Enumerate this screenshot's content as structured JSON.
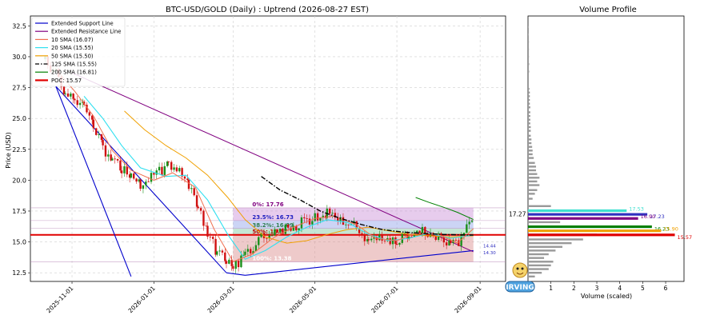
{
  "chart_data": [
    {
      "type": "candlestick",
      "title": "BTC-USD/GOLD (Daily) : Uptrend (2026-08-27 EST)",
      "xlabel": "",
      "ylabel": "Price (USD)",
      "ylim": [
        11.8,
        33.3
      ],
      "yticks": [
        "12.5",
        "15.0",
        "17.5",
        "20.0",
        "22.5",
        "25.0",
        "27.5",
        "30.0",
        "32.5"
      ],
      "xticks": [
        "2025-11-01",
        "2026-01-01",
        "2026-03-01",
        "2026-05-01",
        "2026-07-01",
        "2026-09-01"
      ],
      "grid": true,
      "legend_position": "top-left",
      "legend": [
        {
          "label": "Extended Support Line",
          "color": "#0000cc",
          "style": "solid"
        },
        {
          "label": "Extended Resistance Line",
          "color": "#800080",
          "style": "solid"
        },
        {
          "label": "10 SMA (16.07)",
          "color": "#f07050",
          "style": "solid"
        },
        {
          "label": "20 SMA (15.55)",
          "color": "#30e0f0",
          "style": "solid"
        },
        {
          "label": "50 SMA (15.50)",
          "color": "#f0a000",
          "style": "solid"
        },
        {
          "label": "125 SMA (15.55)",
          "color": "#000000",
          "style": "dashdot"
        },
        {
          "label": "200 SMA (16.81)",
          "color": "#008000",
          "style": "solid"
        },
        {
          "label": "POC: 15.57",
          "color": "#e00000",
          "style": "thick"
        }
      ],
      "close_series": [
        [
          "2025-10-12",
          29.8
        ],
        [
          "2025-10-20",
          28.6
        ],
        [
          "2025-10-27",
          27.2
        ],
        [
          "2025-11-03",
          26.6
        ],
        [
          "2025-11-10",
          25.9
        ],
        [
          "2025-11-17",
          24.3
        ],
        [
          "2025-11-24",
          22.6
        ],
        [
          "2025-12-01",
          21.4
        ],
        [
          "2025-12-08",
          21.0
        ],
        [
          "2025-12-15",
          20.1
        ],
        [
          "2025-12-22",
          19.6
        ],
        [
          "2026-01-01",
          20.4
        ],
        [
          "2026-01-12",
          21.2
        ],
        [
          "2026-01-20",
          20.8
        ],
        [
          "2026-01-27",
          19.5
        ],
        [
          "2026-02-03",
          17.8
        ],
        [
          "2026-02-10",
          15.6
        ],
        [
          "2026-02-17",
          14.2
        ],
        [
          "2026-02-24",
          13.4
        ],
        [
          "2026-03-01",
          12.9
        ],
        [
          "2026-03-10",
          13.8
        ],
        [
          "2026-03-20",
          15.2
        ],
        [
          "2026-04-01",
          15.8
        ],
        [
          "2026-04-15",
          16.3
        ],
        [
          "2026-05-01",
          17.0
        ],
        [
          "2026-05-10",
          17.3
        ],
        [
          "2026-05-20",
          16.9
        ],
        [
          "2026-06-01",
          16.1
        ],
        [
          "2026-06-10",
          14.9
        ],
        [
          "2026-06-20",
          15.3
        ],
        [
          "2026-07-01",
          15.0
        ],
        [
          "2026-07-10",
          15.5
        ],
        [
          "2026-07-20",
          15.9
        ],
        [
          "2026-08-01",
          15.4
        ],
        [
          "2026-08-10",
          14.6
        ],
        [
          "2026-08-18",
          15.2
        ],
        [
          "2026-08-24",
          16.6
        ],
        [
          "2026-08-27",
          17.2
        ]
      ],
      "sma_10": [
        [
          "2025-10-20",
          29.0
        ],
        [
          "2025-11-03",
          27.2
        ],
        [
          "2025-11-17",
          25.2
        ],
        [
          "2025-12-01",
          22.4
        ],
        [
          "2025-12-15",
          20.8
        ],
        [
          "2026-01-01",
          20.0
        ],
        [
          "2026-01-15",
          20.6
        ],
        [
          "2026-02-01",
          19.4
        ],
        [
          "2026-02-15",
          16.0
        ],
        [
          "2026-03-01",
          13.4
        ],
        [
          "2026-03-15",
          14.0
        ],
        [
          "2026-04-01",
          15.4
        ],
        [
          "2026-04-15",
          16.2
        ],
        [
          "2026-05-01",
          16.9
        ],
        [
          "2026-05-15",
          17.1
        ],
        [
          "2026-06-01",
          16.4
        ],
        [
          "2026-06-15",
          15.3
        ],
        [
          "2026-07-01",
          15.1
        ],
        [
          "2026-07-15",
          15.7
        ],
        [
          "2026-08-01",
          15.6
        ],
        [
          "2026-08-15",
          14.9
        ],
        [
          "2026-08-27",
          16.07
        ]
      ],
      "sma_20": [
        [
          "2025-11-10",
          26.8
        ],
        [
          "2025-11-24",
          25.0
        ],
        [
          "2025-12-08",
          22.8
        ],
        [
          "2025-12-22",
          21.0
        ],
        [
          "2026-01-10",
          20.3
        ],
        [
          "2026-01-25",
          20.4
        ],
        [
          "2026-02-10",
          18.4
        ],
        [
          "2026-02-25",
          15.6
        ],
        [
          "2026-03-10",
          13.6
        ],
        [
          "2026-03-25",
          14.3
        ],
        [
          "2026-04-10",
          15.4
        ],
        [
          "2026-04-25",
          16.2
        ],
        [
          "2026-05-10",
          16.8
        ],
        [
          "2026-05-25",
          16.6
        ],
        [
          "2026-06-10",
          15.6
        ],
        [
          "2026-06-25",
          15.1
        ],
        [
          "2026-07-10",
          15.3
        ],
        [
          "2026-07-25",
          15.7
        ],
        [
          "2026-08-10",
          15.3
        ],
        [
          "2026-08-27",
          15.55
        ]
      ],
      "sma_50": [
        [
          "2025-12-10",
          25.6
        ],
        [
          "2025-12-25",
          24.1
        ],
        [
          "2026-01-10",
          22.8
        ],
        [
          "2026-01-25",
          21.8
        ],
        [
          "2026-02-10",
          20.4
        ],
        [
          "2026-02-25",
          18.6
        ],
        [
          "2026-03-10",
          16.8
        ],
        [
          "2026-03-25",
          15.4
        ],
        [
          "2026-04-10",
          14.9
        ],
        [
          "2026-04-25",
          15.1
        ],
        [
          "2026-05-10",
          15.6
        ],
        [
          "2026-05-25",
          16.0
        ],
        [
          "2026-06-10",
          16.2
        ],
        [
          "2026-06-25",
          15.9
        ],
        [
          "2026-07-10",
          15.6
        ],
        [
          "2026-07-25",
          15.5
        ],
        [
          "2026-08-10",
          15.4
        ],
        [
          "2026-08-27",
          15.5
        ]
      ],
      "sma_125": [
        [
          "2026-03-22",
          20.3
        ],
        [
          "2026-04-05",
          19.2
        ],
        [
          "2026-04-20",
          18.4
        ],
        [
          "2026-05-05",
          17.5
        ],
        [
          "2026-05-20",
          16.9
        ],
        [
          "2026-06-05",
          16.4
        ],
        [
          "2026-06-20",
          16.0
        ],
        [
          "2026-07-05",
          15.8
        ],
        [
          "2026-07-20",
          15.7
        ],
        [
          "2026-08-05",
          15.6
        ],
        [
          "2026-08-27",
          15.55
        ]
      ],
      "sma_200": [
        [
          "2026-07-15",
          18.6
        ],
        [
          "2026-07-25",
          18.2
        ],
        [
          "2026-08-05",
          17.8
        ],
        [
          "2026-08-15",
          17.4
        ],
        [
          "2026-08-27",
          16.81
        ]
      ],
      "support_lines": [
        {
          "from": [
            "2025-10-20",
            27.6
          ],
          "to": [
            "2025-12-15",
            12.2
          ]
        },
        {
          "from": [
            "2025-10-20",
            27.6
          ],
          "to": [
            "2026-02-24",
            12.5
          ]
        },
        {
          "from": [
            "2026-02-24",
            12.5
          ],
          "to": [
            "2026-03-10",
            12.3
          ]
        },
        {
          "from": [
            "2026-03-10",
            12.3
          ],
          "to": [
            "2026-08-27",
            14.3
          ]
        }
      ],
      "resistance_lines": [
        {
          "from": [
            "2025-11-01",
            28.7
          ],
          "to": [
            "2026-08-27",
            14.2
          ]
        }
      ],
      "fibonacci": {
        "start": "2026-03-01",
        "end": "2026-08-27",
        "levels": [
          {
            "label": "0%: 17.76",
            "value": 17.76
          },
          {
            "label": "23.5%: 16.73",
            "value": 16.73
          },
          {
            "label": "38.2%: 16.09",
            "value": 16.09
          },
          {
            "label": "50%: 15.57",
            "value": 15.57
          },
          {
            "label": "100%: 13.38",
            "value": 13.38
          }
        ]
      },
      "poc": 15.57,
      "right_label": "17.27",
      "line_end_labels": [
        "14.44",
        "14.30"
      ]
    },
    {
      "type": "bar",
      "orientation": "horizontal",
      "title": "Volume Profile",
      "xlabel": "Volume (scaled)",
      "xticks": [
        "1",
        "2",
        "3",
        "4",
        "5",
        "6"
      ],
      "xlim": [
        0,
        6.8
      ],
      "highlighted_bars": [
        {
          "price": 17.53,
          "label": "17.53",
          "value": 4.3,
          "color": "#40e0d0"
        },
        {
          "price": 17.23,
          "label": "17.23",
          "value": 5.2,
          "color": "#3030c0"
        },
        {
          "price": 16.9,
          "label": "16.90",
          "value": 4.8,
          "color": "#800080"
        },
        {
          "price": 16.23,
          "label": "16.23",
          "value": 5.4,
          "color": "#008000"
        },
        {
          "price": 15.9,
          "label": "15.90",
          "value": 5.8,
          "color": "#f0a000"
        },
        {
          "price": 15.57,
          "label": "15.57",
          "value": 6.4,
          "color": "#e00000"
        }
      ],
      "gray_bars": [
        [
          12.2,
          0.3
        ],
        [
          12.5,
          0.6
        ],
        [
          12.8,
          0.9
        ],
        [
          13.1,
          1.0
        ],
        [
          13.4,
          1.1
        ],
        [
          13.7,
          0.7
        ],
        [
          14.0,
          0.9
        ],
        [
          14.3,
          1.2
        ],
        [
          14.6,
          1.5
        ],
        [
          14.9,
          1.9
        ],
        [
          15.2,
          2.4
        ],
        [
          15.6,
          3.0
        ],
        [
          16.6,
          1.4
        ],
        [
          17.9,
          1.0
        ],
        [
          18.5,
          0.2
        ],
        [
          18.9,
          0.3
        ],
        [
          19.2,
          0.4
        ],
        [
          19.6,
          0.5
        ],
        [
          19.9,
          0.4
        ],
        [
          20.2,
          0.5
        ],
        [
          20.5,
          0.4
        ],
        [
          20.8,
          0.35
        ],
        [
          21.1,
          0.35
        ],
        [
          21.4,
          0.3
        ],
        [
          21.8,
          0.25
        ],
        [
          22.1,
          0.2
        ],
        [
          22.4,
          0.2
        ],
        [
          22.7,
          0.18
        ],
        [
          23.0,
          0.15
        ],
        [
          23.3,
          0.15
        ],
        [
          23.6,
          0.12
        ],
        [
          24.0,
          0.12
        ],
        [
          24.3,
          0.12
        ],
        [
          24.6,
          0.1
        ],
        [
          24.9,
          0.1
        ],
        [
          25.2,
          0.1
        ],
        [
          25.5,
          0.1
        ],
        [
          25.9,
          0.1
        ],
        [
          26.2,
          0.08
        ],
        [
          26.5,
          0.08
        ],
        [
          26.8,
          0.08
        ],
        [
          27.1,
          0.08
        ],
        [
          27.4,
          0.06
        ],
        [
          28.8,
          0.05
        ],
        [
          29.4,
          0.05
        ],
        [
          30.0,
          0.04
        ],
        [
          30.6,
          0.04
        ],
        [
          31.2,
          0.04
        ],
        [
          31.8,
          0.03
        ],
        [
          32.4,
          0.03
        ]
      ]
    }
  ],
  "watermark_text": "IRVING"
}
